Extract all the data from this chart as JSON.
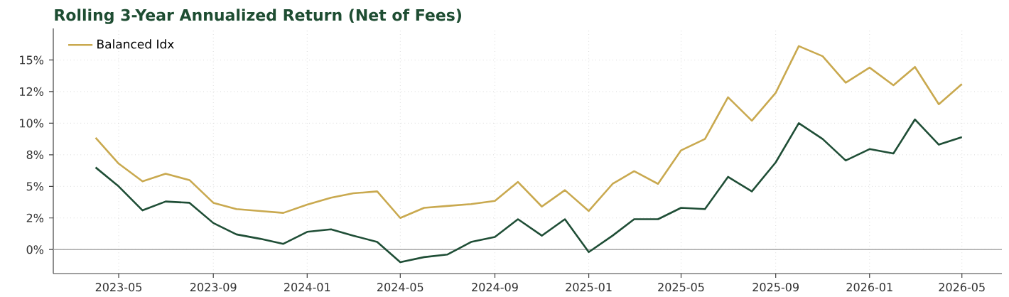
{
  "chart_data": {
    "type": "line",
    "title": "Rolling 3-Year Annualized Return (Net of Fees)",
    "x": [
      "2023-04",
      "2023-05",
      "2023-06",
      "2023-07",
      "2023-08",
      "2023-09",
      "2023-10",
      "2023-11",
      "2023-12",
      "2024-01",
      "2024-02",
      "2024-03",
      "2024-04",
      "2024-05",
      "2024-06",
      "2024-07",
      "2024-08",
      "2024-09",
      "2024-10",
      "2024-11",
      "2024-12",
      "2025-01",
      "2025-02",
      "2025-03",
      "2025-04",
      "2025-05",
      "2025-06",
      "2025-07",
      "2025-08",
      "2025-09",
      "2025-10",
      "2025-11",
      "2025-12",
      "2026-01",
      "2026-02",
      "2026-03",
      "2026-04",
      "2026-05"
    ],
    "series": [
      {
        "color": "#1f4e36",
        "values": [
          6.5,
          5.0,
          3.1,
          3.8,
          3.7,
          2.1,
          1.2,
          0.85,
          0.45,
          1.4,
          1.6,
          1.1,
          0.6,
          -1.0,
          -0.6,
          -0.4,
          0.6,
          1.0,
          2.4,
          1.1,
          2.4,
          -0.2,
          1.1,
          2.4,
          2.4,
          3.3,
          3.2,
          5.75,
          4.6,
          6.9,
          10.0,
          8.75,
          7.05,
          7.95,
          7.6,
          10.3,
          8.3,
          8.9
        ]
      },
      {
        "name": "Balanced Idx",
        "color": "#c9a94f",
        "values": [
          8.85,
          6.8,
          5.4,
          6.0,
          5.5,
          3.7,
          3.2,
          3.05,
          2.9,
          3.55,
          4.1,
          4.45,
          4.6,
          2.5,
          3.3,
          3.45,
          3.6,
          3.85,
          5.35,
          3.4,
          4.7,
          3.05,
          5.2,
          6.2,
          5.2,
          7.85,
          8.75,
          12.05,
          10.2,
          12.4,
          16.1,
          15.3,
          13.2,
          14.4,
          13.0,
          14.45,
          11.5,
          13.1
        ]
      }
    ],
    "xlim": [
      "2023-02-05",
      "2026-06-22"
    ],
    "xticks": [
      "2023-05",
      "2023-09",
      "2024-01",
      "2024-05",
      "2024-09",
      "2025-01",
      "2025-05",
      "2025-09",
      "2026-01",
      "2026-05"
    ],
    "ylim": [
      -1.9,
      17.5
    ],
    "yticks": [
      {
        "value": 0,
        "label": "0%"
      },
      {
        "value": 2.5,
        "label": "2%"
      },
      {
        "value": 5,
        "label": "5%"
      },
      {
        "value": 7.5,
        "label": "8%"
      },
      {
        "value": 10,
        "label": "10%"
      },
      {
        "value": 12.5,
        "label": "12%"
      },
      {
        "value": 15,
        "label": "15%"
      }
    ],
    "ref_lines": [
      {
        "axis": "y",
        "value": 0,
        "color": "#aaaaaa"
      }
    ],
    "grid": true,
    "legend": "top left"
  }
}
